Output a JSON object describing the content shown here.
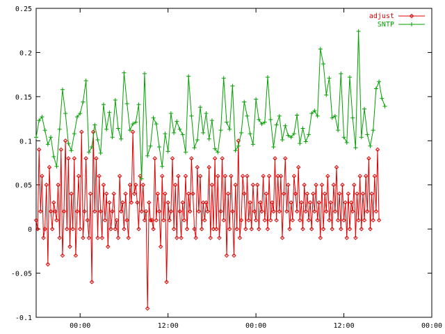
{
  "chart_data": {
    "type": "line",
    "title": "",
    "xlabel": "",
    "ylabel": "",
    "ylim": [
      -0.1,
      0.25
    ],
    "xlim": [
      -6,
      48
    ],
    "grid": false,
    "legend_position": "top-right",
    "y_ticks": [
      {
        "value": 0.25,
        "label": "0.25"
      },
      {
        "value": 0.2,
        "label": "0.2"
      },
      {
        "value": 0.15,
        "label": "0.15"
      },
      {
        "value": 0.1,
        "label": "0.1"
      },
      {
        "value": 0.05,
        "label": "0.05"
      },
      {
        "value": 0,
        "label": "0"
      },
      {
        "value": -0.05,
        "label": "-0.05"
      },
      {
        "value": -0.1,
        "label": "-0.1"
      }
    ],
    "x_ticks": [
      {
        "value": 0,
        "label": "00:00"
      },
      {
        "value": 12,
        "label": "12:00"
      },
      {
        "value": 24,
        "label": "00:00"
      },
      {
        "value": 36,
        "label": "12:00"
      },
      {
        "value": 48,
        "label": "00:00"
      }
    ],
    "series": [
      {
        "name": "adjust",
        "color": "#e00000",
        "marker": "diamond",
        "x_start": -6,
        "x_step": 0.2,
        "values": [
          0.01,
          0.0,
          0.09,
          0.02,
          0.06,
          -0.01,
          0.0,
          0.05,
          -0.04,
          0.07,
          0.02,
          0.0,
          0.03,
          0.02,
          0.01,
          0.05,
          -0.01,
          0.09,
          -0.03,
          0.02,
          0.1,
          0.0,
          0.08,
          -0.02,
          0.04,
          0.0,
          0.08,
          -0.03,
          0.02,
          0.06,
          0.0,
          0.11,
          -0.01,
          0.02,
          0.08,
          0.01,
          -0.01,
          0.04,
          -0.06,
          0.11,
          0.02,
          0.08,
          -0.01,
          0.06,
          0.02,
          -0.01,
          0.05,
          0.01,
          0.04,
          -0.02,
          0.03,
          0.0,
          0.02,
          0.04,
          0.0,
          0.01,
          -0.01,
          0.06,
          0.02,
          0.03,
          0.0,
          0.04,
          0.01,
          -0.01,
          0.05,
          0.03,
          0.11,
          0.04,
          0.05,
          0.03,
          0.0,
          0.06,
          0.02,
          0.05,
          0.01,
          0.02,
          -0.09,
          0.03,
          0.01,
          0.01,
          0.0,
          0.08,
          0.01,
          0.04,
          0.02,
          -0.02,
          0.06,
          0.01,
          0.04,
          -0.06,
          0.03,
          0.01,
          0.02,
          0.08,
          0.0,
          0.05,
          -0.01,
          0.06,
          0.02,
          -0.01,
          0.03,
          0.01,
          0.06,
          0.0,
          0.04,
          0.02,
          0.08,
          0.04,
          0.0,
          -0.01,
          0.07,
          0.02,
          0.06,
          0.0,
          0.03,
          0.01,
          0.03,
          0.02,
          0.07,
          -0.01,
          0.05,
          0.0,
          0.08,
          0.0,
          0.06,
          -0.01,
          0.02,
          0.08,
          0.01,
          0.06,
          -0.03,
          0.04,
          0.0,
          0.06,
          0.02,
          -0.03,
          0.05,
          0.0,
          0.1,
          -0.01,
          0.01,
          0.06,
          0.04,
          0.0,
          0.06,
          0.01,
          0.03,
          0.0,
          0.05,
          0.02,
          0.01,
          0.05,
          0.0,
          0.03,
          0.02,
          0.06,
          0.01,
          0.04,
          0.0,
          0.06,
          0.01,
          0.03,
          0.02,
          0.08,
          0.01,
          0.06,
          0.02,
          0.06,
          -0.01,
          0.04,
          0.08,
          0.02,
          0.05,
          0.0,
          0.03,
          0.01,
          0.06,
          0.04,
          0.02,
          0.07,
          0.01,
          0.03,
          0.0,
          0.05,
          0.02,
          0.04,
          0.01,
          0.03,
          0.0,
          0.04,
          0.02,
          0.05,
          0.01,
          0.03,
          -0.01,
          0.05,
          0.0,
          0.04,
          0.02,
          0.06,
          0.01,
          0.03,
          0.0,
          0.05,
          0.02,
          0.07,
          0.01,
          0.04,
          0.0,
          0.05,
          0.01,
          0.03,
          -0.01,
          0.04,
          0.0,
          0.03,
          0.02,
          0.05,
          -0.01,
          0.04,
          0.01,
          0.06,
          0.0,
          0.04,
          0.01,
          0.06,
          0.02,
          0.08,
          0.0,
          0.04,
          0.01,
          0.06,
          0.02,
          0.09,
          0.01
        ]
      },
      {
        "name": "SNTP",
        "color": "#00a000",
        "marker": "plus",
        "x_start": -6,
        "x_step": 0.4,
        "values": [
          0.104,
          0.123,
          0.127,
          0.112,
          0.096,
          0.104,
          0.082,
          0.071,
          0.113,
          0.158,
          0.131,
          0.097,
          0.089,
          0.108,
          0.127,
          0.131,
          0.144,
          0.168,
          0.087,
          0.093,
          0.118,
          0.101,
          0.086,
          0.141,
          0.113,
          0.132,
          0.104,
          0.146,
          0.114,
          0.102,
          0.177,
          0.142,
          0.112,
          0.119,
          0.121,
          0.141,
          0.057,
          0.176,
          0.083,
          0.094,
          0.126,
          0.119,
          0.093,
          0.071,
          0.108,
          0.088,
          0.131,
          0.109,
          0.122,
          0.113,
          0.107,
          0.087,
          0.173,
          0.128,
          0.092,
          0.101,
          0.138,
          0.109,
          0.131,
          0.102,
          0.123,
          0.091,
          0.087,
          0.112,
          0.171,
          0.121,
          0.113,
          0.162,
          0.089,
          0.094,
          0.109,
          0.144,
          0.128,
          0.108,
          0.096,
          0.147,
          0.124,
          0.119,
          0.121,
          0.172,
          0.124,
          0.093,
          0.118,
          0.128,
          0.101,
          0.117,
          0.106,
          0.104,
          0.108,
          0.129,
          0.097,
          0.114,
          0.099,
          0.107,
          0.131,
          0.134,
          0.128,
          0.204,
          0.187,
          0.152,
          0.171,
          0.126,
          0.128,
          0.112,
          0.176,
          0.104,
          0.098,
          0.172,
          0.126,
          0.092,
          0.224,
          0.104,
          0.136,
          0.107,
          0.094,
          0.112,
          0.159,
          0.167,
          0.148,
          0.139
        ]
      }
    ]
  }
}
